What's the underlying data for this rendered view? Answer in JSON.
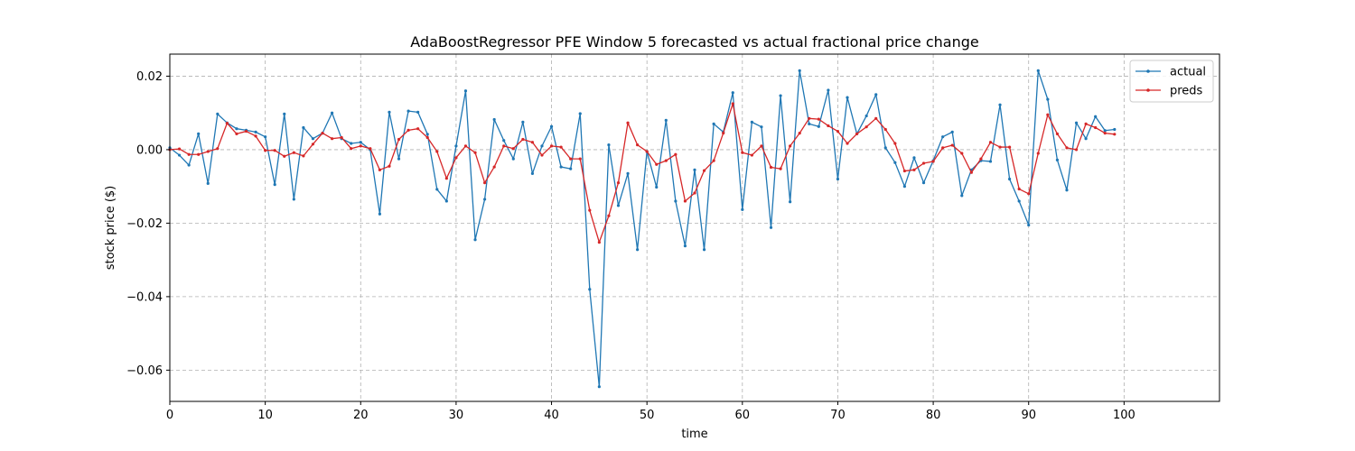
{
  "chart_data": {
    "type": "line",
    "title": "AdaBoostRegressor PFE Window 5 forecasted vs actual fractional price change",
    "xlabel": "time",
    "ylabel": "stock price ($)",
    "xlim": [
      0,
      110
    ],
    "ylim": [
      -0.0685,
      0.026
    ],
    "xticks": [
      0,
      10,
      20,
      30,
      40,
      50,
      60,
      70,
      80,
      90,
      100
    ],
    "xtick_labels": [
      "0",
      "10",
      "20",
      "30",
      "40",
      "50",
      "60",
      "70",
      "80",
      "90",
      "100"
    ],
    "yticks": [
      0.02,
      0.0,
      -0.02,
      -0.04,
      -0.06
    ],
    "ytick_labels": [
      "0.02",
      "0.00",
      "−0.02",
      "−0.04",
      "−0.06"
    ],
    "grid": true,
    "legend_position": "top-right",
    "series": [
      {
        "name": "actual",
        "color": "#1f77b4",
        "values": [
          0.0005,
          -0.0015,
          -0.0042,
          0.0043,
          -0.0092,
          0.0097,
          0.0073,
          0.0057,
          0.0053,
          0.0048,
          0.0035,
          -0.0095,
          0.0097,
          -0.0135,
          0.006,
          0.003,
          0.0045,
          0.01,
          0.003,
          0.0017,
          0.002,
          0.0,
          -0.0175,
          0.0102,
          -0.0025,
          0.0105,
          0.0102,
          0.0042,
          -0.0108,
          -0.014,
          0.001,
          0.016,
          -0.0245,
          -0.0135,
          0.0082,
          0.0025,
          -0.0025,
          0.0075,
          -0.0065,
          0.001,
          0.0063,
          -0.0047,
          -0.0052,
          0.0098,
          -0.038,
          -0.0645,
          0.0013,
          -0.0152,
          -0.0065,
          -0.0272,
          -0.0005,
          -0.0102,
          0.008,
          -0.014,
          -0.0262,
          -0.0055,
          -0.0272,
          0.007,
          0.0048,
          0.0155,
          -0.0163,
          0.0075,
          0.0062,
          -0.0212,
          0.0147,
          -0.0142,
          0.0215,
          0.007,
          0.0063,
          0.0162,
          -0.008,
          0.0142,
          0.0043,
          0.0092,
          0.015,
          0.0005,
          -0.0035,
          -0.01,
          -0.0022,
          -0.009,
          -0.003,
          0.0035,
          0.0048,
          -0.0125,
          -0.0055,
          -0.003,
          -0.0032,
          0.0122,
          -0.008,
          -0.014,
          -0.0205,
          0.0215,
          0.0137,
          -0.0028,
          -0.011,
          0.0073,
          0.003,
          0.009,
          0.0052,
          0.0055
        ]
      },
      {
        "name": "preds",
        "color": "#d62728",
        "values": [
          0.0,
          0.0002,
          -0.0013,
          -0.0013,
          -0.0005,
          0.0003,
          0.0072,
          0.0043,
          0.005,
          0.0037,
          -0.0002,
          -0.0002,
          -0.0018,
          -0.0008,
          -0.0017,
          0.0015,
          0.0045,
          0.003,
          0.0033,
          0.0003,
          0.001,
          0.0003,
          -0.0055,
          -0.0045,
          0.0028,
          0.0053,
          0.0057,
          0.0033,
          -0.0005,
          -0.0078,
          -0.0022,
          0.001,
          -0.0008,
          -0.009,
          -0.0047,
          0.001,
          0.0003,
          0.0028,
          0.002,
          -0.0015,
          0.001,
          0.0007,
          -0.0025,
          -0.0025,
          -0.0165,
          -0.0252,
          -0.018,
          -0.009,
          0.0073,
          0.0013,
          -0.0005,
          -0.004,
          -0.003,
          -0.0013,
          -0.014,
          -0.0118,
          -0.0057,
          -0.003,
          0.0045,
          0.0125,
          -0.0008,
          -0.0015,
          0.001,
          -0.0048,
          -0.0052,
          0.001,
          0.0045,
          0.0085,
          0.0083,
          0.0065,
          0.005,
          0.0017,
          0.0043,
          0.0062,
          0.0085,
          0.0055,
          0.0017,
          -0.0058,
          -0.0055,
          -0.0037,
          -0.0032,
          0.0005,
          0.0012,
          -0.001,
          -0.0062,
          -0.0025,
          0.002,
          0.0007,
          0.0007,
          -0.0107,
          -0.012,
          -0.001,
          0.0095,
          0.0043,
          0.0005,
          0.0,
          0.007,
          0.006,
          0.0045,
          0.0042
        ]
      }
    ]
  }
}
